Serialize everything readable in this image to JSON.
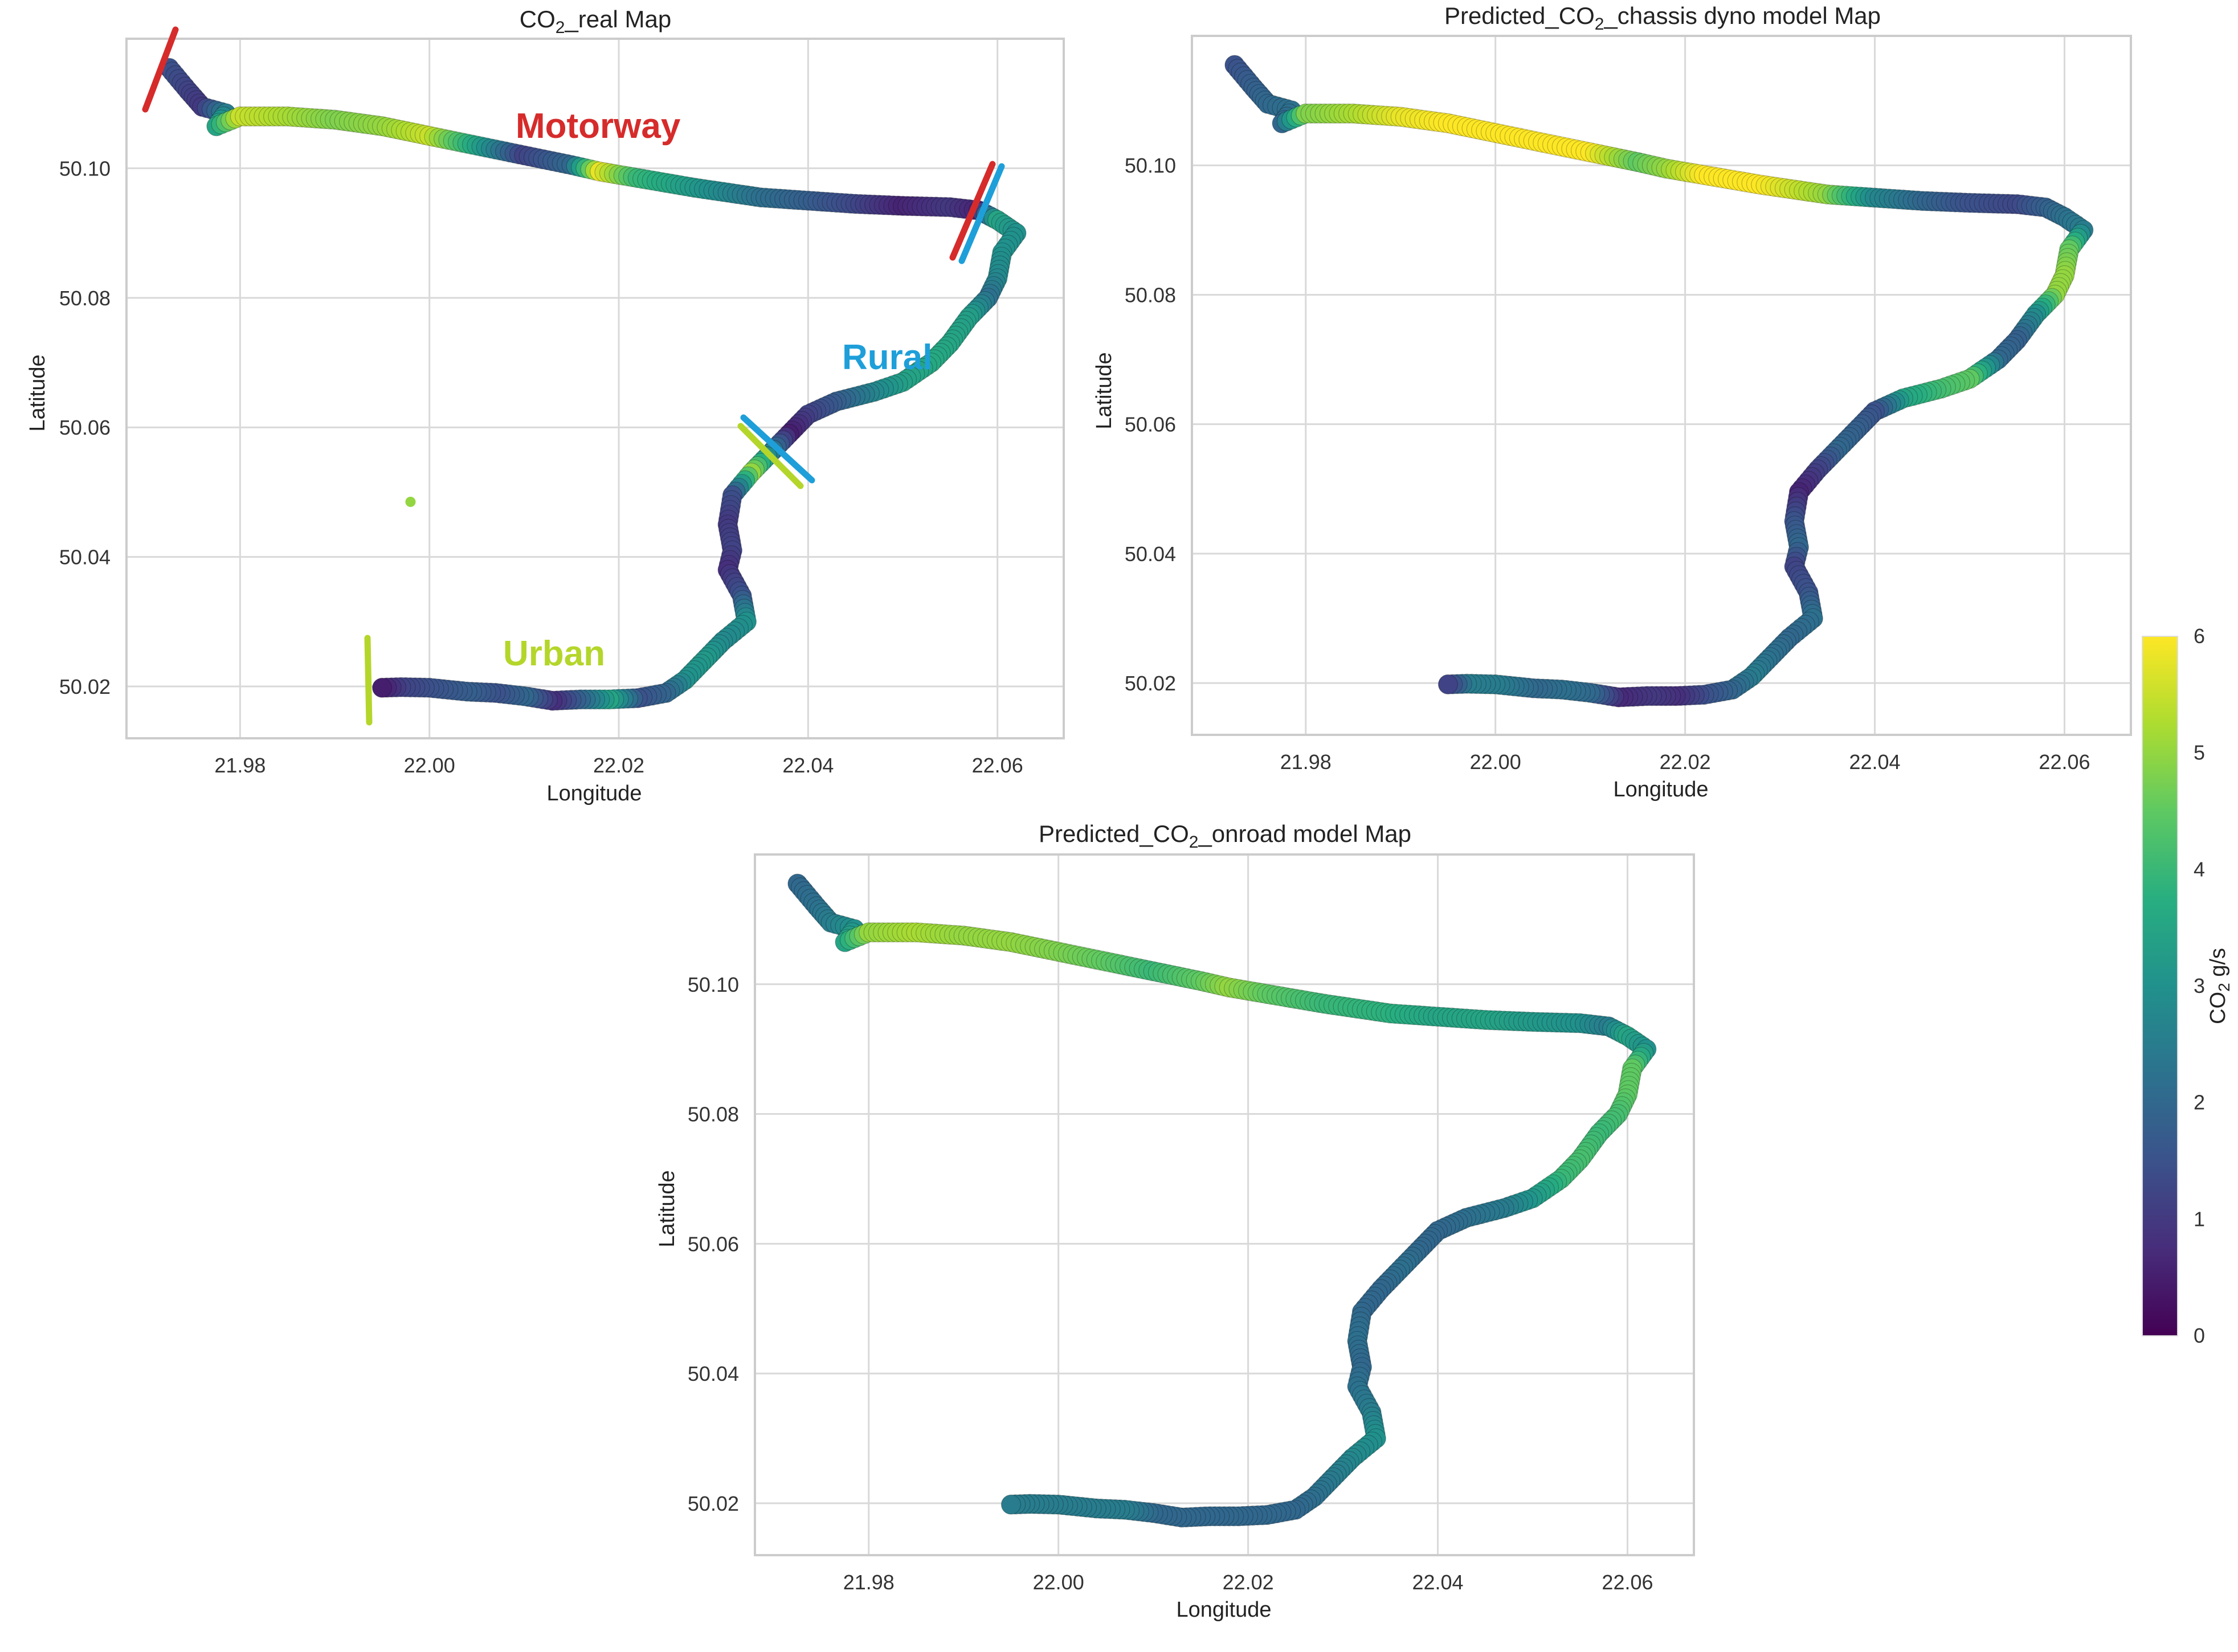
{
  "chart_data": [
    {
      "type": "scatter",
      "panel": "co2_real",
      "title_prefix": "CO",
      "title_sub": "2",
      "title_suffix": "_real Map",
      "xlabel": "Longitude",
      "ylabel": "Latitude",
      "xlim": [
        21.968,
        22.067
      ],
      "ylim": [
        50.012,
        50.12
      ],
      "xticks": [
        "21.98",
        "22.00",
        "22.02",
        "22.04",
        "22.06"
      ],
      "xtick_values": [
        21.98,
        22.0,
        22.02,
        22.04,
        22.06
      ],
      "yticks": [
        "50.02",
        "50.04",
        "50.06",
        "50.08",
        "50.10"
      ],
      "ytick_values": [
        50.02,
        50.04,
        50.06,
        50.08,
        50.1
      ],
      "points": [
        [
          21.9725,
          50.1155,
          1.5
        ],
        [
          21.9745,
          50.112,
          1.2
        ],
        [
          21.976,
          50.1095,
          1.0
        ],
        [
          21.9785,
          50.1085,
          2.5
        ],
        [
          21.9775,
          50.1065,
          3.5
        ],
        [
          21.98,
          50.108,
          5.5
        ],
        [
          21.985,
          50.108,
          5.2
        ],
        [
          21.99,
          50.1075,
          4.8
        ],
        [
          21.995,
          50.1065,
          5.0
        ],
        [
          22.0,
          50.105,
          5.5
        ],
        [
          22.005,
          50.1035,
          3.5
        ],
        [
          22.01,
          50.102,
          1.2
        ],
        [
          22.015,
          50.1005,
          2.0
        ],
        [
          22.018,
          50.0995,
          5.8
        ],
        [
          22.022,
          50.0985,
          4.0
        ],
        [
          22.028,
          50.097,
          3.2
        ],
        [
          22.035,
          50.0955,
          2.2
        ],
        [
          22.04,
          50.095,
          1.8
        ],
        [
          22.045,
          50.0945,
          1.3
        ],
        [
          22.05,
          50.0942,
          0.6
        ],
        [
          22.055,
          50.094,
          1.0
        ],
        [
          22.058,
          50.0935,
          0.6
        ],
        [
          22.06,
          50.092,
          3.5
        ],
        [
          22.062,
          50.09,
          3.0
        ],
        [
          22.0605,
          50.087,
          3.0
        ],
        [
          22.06,
          50.083,
          2.8
        ],
        [
          22.059,
          50.08,
          2.2
        ],
        [
          22.057,
          50.077,
          3.3
        ],
        [
          22.055,
          50.073,
          3.5
        ],
        [
          22.053,
          50.07,
          3.6
        ],
        [
          22.05,
          50.067,
          3.4
        ],
        [
          22.047,
          50.0655,
          2.8
        ],
        [
          22.043,
          50.064,
          1.8
        ],
        [
          22.04,
          50.062,
          1.2
        ],
        [
          22.038,
          50.059,
          0.5
        ],
        [
          22.036,
          50.056,
          2.5
        ],
        [
          22.034,
          50.053,
          5.0
        ],
        [
          22.032,
          50.0495,
          1.5
        ],
        [
          22.0315,
          50.045,
          1.0
        ],
        [
          22.032,
          50.041,
          1.2
        ],
        [
          22.0315,
          50.038,
          0.8
        ],
        [
          22.033,
          50.034,
          1.5
        ],
        [
          22.0335,
          50.03,
          3.0
        ],
        [
          22.031,
          50.027,
          2.8
        ],
        [
          22.029,
          50.024,
          3.2
        ],
        [
          22.027,
          50.021,
          3.0
        ],
        [
          22.025,
          50.019,
          2.0
        ],
        [
          22.022,
          50.0182,
          1.5
        ],
        [
          22.019,
          50.018,
          3.5
        ],
        [
          22.016,
          50.018,
          2.0
        ],
        [
          22.013,
          50.0178,
          0.8
        ],
        [
          22.01,
          50.0185,
          2.0
        ],
        [
          22.007,
          50.019,
          1.5
        ],
        [
          22.004,
          50.0192,
          1.8
        ],
        [
          22.0,
          50.0198,
          1.5
        ],
        [
          21.997,
          50.0199,
          1.2
        ],
        [
          21.995,
          50.0198,
          0.5
        ],
        [
          21.998,
          50.0485,
          5.0
        ]
      ],
      "annotations": [
        {
          "label": "Motorway",
          "color": "#d62b2b"
        },
        {
          "label": "Rural",
          "color": "#1e9fd9"
        },
        {
          "label": "Urban",
          "color": "#b4d62b"
        }
      ]
    },
    {
      "type": "scatter",
      "panel": "chassis_dyno",
      "title_prefix": "Predicted_CO",
      "title_sub": "2",
      "title_suffix": "_chassis dyno model Map",
      "xlabel": "Longitude",
      "ylabel": "Latitude",
      "xlim": [
        21.968,
        22.067
      ],
      "ylim": [
        50.012,
        50.12
      ],
      "xticks": [
        "21.98",
        "22.00",
        "22.02",
        "22.04",
        "22.06"
      ],
      "xtick_values": [
        21.98,
        22.0,
        22.02,
        22.04,
        22.06
      ],
      "yticks": [
        "50.02",
        "50.04",
        "50.06",
        "50.08",
        "50.10"
      ],
      "ytick_values": [
        50.02,
        50.04,
        50.06,
        50.08,
        50.1
      ],
      "points": [
        [
          21.9725,
          50.1155,
          1.5
        ],
        [
          21.9745,
          50.112,
          1.8
        ],
        [
          21.976,
          50.1095,
          2.0
        ],
        [
          21.9785,
          50.1085,
          2.2
        ],
        [
          21.9775,
          50.1065,
          2.0
        ],
        [
          21.98,
          50.108,
          4.8
        ],
        [
          21.985,
          50.108,
          5.2
        ],
        [
          21.99,
          50.1075,
          5.8
        ],
        [
          21.995,
          50.1065,
          6.0
        ],
        [
          22.0,
          50.105,
          6.0
        ],
        [
          22.005,
          50.1035,
          6.0
        ],
        [
          22.01,
          50.102,
          6.0
        ],
        [
          22.015,
          50.1005,
          4.5
        ],
        [
          22.018,
          50.0995,
          5.0
        ],
        [
          22.022,
          50.0985,
          6.0
        ],
        [
          22.028,
          50.097,
          6.0
        ],
        [
          22.035,
          50.0955,
          5.0
        ],
        [
          22.04,
          50.095,
          2.8
        ],
        [
          22.045,
          50.0945,
          2.0
        ],
        [
          22.05,
          50.0942,
          1.5
        ],
        [
          22.055,
          50.094,
          1.3
        ],
        [
          22.058,
          50.0935,
          1.8
        ],
        [
          22.06,
          50.092,
          2.2
        ],
        [
          22.062,
          50.09,
          2.5
        ],
        [
          22.0605,
          50.087,
          4.5
        ],
        [
          22.06,
          50.083,
          5.0
        ],
        [
          22.059,
          50.08,
          5.0
        ],
        [
          22.057,
          50.077,
          3.0
        ],
        [
          22.055,
          50.073,
          1.8
        ],
        [
          22.053,
          50.07,
          2.0
        ],
        [
          22.05,
          50.067,
          4.5
        ],
        [
          22.047,
          50.0655,
          4.2
        ],
        [
          22.043,
          50.064,
          3.5
        ],
        [
          22.04,
          50.062,
          1.5
        ],
        [
          22.038,
          50.059,
          1.8
        ],
        [
          22.036,
          50.056,
          2.0
        ],
        [
          22.034,
          50.053,
          1.2
        ],
        [
          22.032,
          50.0495,
          0.6
        ],
        [
          22.0315,
          50.045,
          1.5
        ],
        [
          22.032,
          50.041,
          2.0
        ],
        [
          22.0315,
          50.038,
          1.2
        ],
        [
          22.033,
          50.034,
          1.5
        ],
        [
          22.0335,
          50.03,
          2.2
        ],
        [
          22.031,
          50.027,
          2.0
        ],
        [
          22.029,
          50.024,
          2.2
        ],
        [
          22.027,
          50.021,
          2.5
        ],
        [
          22.025,
          50.019,
          2.0
        ],
        [
          22.022,
          50.0182,
          1.5
        ],
        [
          22.019,
          50.018,
          0.8
        ],
        [
          22.016,
          50.018,
          1.0
        ],
        [
          22.013,
          50.0178,
          0.7
        ],
        [
          22.01,
          50.0185,
          2.0
        ],
        [
          22.007,
          50.019,
          2.2
        ],
        [
          22.004,
          50.0192,
          2.0
        ],
        [
          22.0,
          50.0198,
          2.5
        ],
        [
          21.997,
          50.0199,
          2.5
        ],
        [
          21.995,
          50.0198,
          1.2
        ]
      ]
    },
    {
      "type": "scatter",
      "panel": "onroad",
      "title_prefix": "Predicted_CO",
      "title_sub": "2",
      "title_suffix": "_onroad model Map",
      "xlabel": "Longitude",
      "ylabel": "Latitude",
      "xlim": [
        21.968,
        22.067
      ],
      "ylim": [
        50.012,
        50.12
      ],
      "xticks": [
        "21.98",
        "22.00",
        "22.02",
        "22.04",
        "22.06"
      ],
      "xtick_values": [
        21.98,
        22.0,
        22.02,
        22.04,
        22.06
      ],
      "yticks": [
        "50.02",
        "50.04",
        "50.06",
        "50.08",
        "50.10"
      ],
      "ytick_values": [
        50.02,
        50.04,
        50.06,
        50.08,
        50.1
      ],
      "points": [
        [
          21.9725,
          50.1155,
          2.0
        ],
        [
          21.9745,
          50.112,
          2.2
        ],
        [
          21.976,
          50.1095,
          2.5
        ],
        [
          21.9785,
          50.1085,
          3.0
        ],
        [
          21.9775,
          50.1065,
          3.5
        ],
        [
          21.98,
          50.108,
          5.0
        ],
        [
          21.985,
          50.108,
          5.2
        ],
        [
          21.99,
          50.1075,
          5.0
        ],
        [
          21.995,
          50.1065,
          5.0
        ],
        [
          22.0,
          50.105,
          4.8
        ],
        [
          22.005,
          50.1035,
          4.5
        ],
        [
          22.01,
          50.102,
          4.0
        ],
        [
          22.015,
          50.1005,
          4.5
        ],
        [
          22.018,
          50.0995,
          5.0
        ],
        [
          22.022,
          50.0985,
          4.5
        ],
        [
          22.028,
          50.097,
          4.0
        ],
        [
          22.035,
          50.0955,
          3.8
        ],
        [
          22.04,
          50.095,
          3.5
        ],
        [
          22.045,
          50.0945,
          3.5
        ],
        [
          22.05,
          50.0942,
          3.2
        ],
        [
          22.055,
          50.094,
          3.0
        ],
        [
          22.058,
          50.0935,
          2.5
        ],
        [
          22.06,
          50.092,
          3.5
        ],
        [
          22.062,
          50.09,
          3.0
        ],
        [
          22.0605,
          50.087,
          4.5
        ],
        [
          22.06,
          50.083,
          4.5
        ],
        [
          22.059,
          50.08,
          4.2
        ],
        [
          22.057,
          50.077,
          4.0
        ],
        [
          22.055,
          50.073,
          4.2
        ],
        [
          22.053,
          50.07,
          4.0
        ],
        [
          22.05,
          50.067,
          3.2
        ],
        [
          22.047,
          50.0655,
          2.5
        ],
        [
          22.043,
          50.064,
          2.2
        ],
        [
          22.04,
          50.062,
          2.0
        ],
        [
          22.038,
          50.059,
          2.0
        ],
        [
          22.036,
          50.056,
          2.2
        ],
        [
          22.034,
          50.053,
          2.0
        ],
        [
          22.032,
          50.0495,
          2.0
        ],
        [
          22.0315,
          50.045,
          2.2
        ],
        [
          22.032,
          50.041,
          2.0
        ],
        [
          22.0315,
          50.038,
          2.2
        ],
        [
          22.033,
          50.034,
          2.5
        ],
        [
          22.0335,
          50.03,
          3.0
        ],
        [
          22.031,
          50.027,
          2.8
        ],
        [
          22.029,
          50.024,
          2.5
        ],
        [
          22.027,
          50.021,
          2.2
        ],
        [
          22.025,
          50.019,
          2.0
        ],
        [
          22.022,
          50.0182,
          2.0
        ],
        [
          22.019,
          50.018,
          2.0
        ],
        [
          22.016,
          50.018,
          2.0
        ],
        [
          22.013,
          50.0178,
          2.0
        ],
        [
          22.01,
          50.0185,
          2.0
        ],
        [
          22.007,
          50.019,
          2.5
        ],
        [
          22.004,
          50.0192,
          2.5
        ],
        [
          22.0,
          50.0198,
          2.5
        ],
        [
          21.997,
          50.0199,
          2.5
        ],
        [
          21.995,
          50.0198,
          2.5
        ]
      ]
    }
  ],
  "colorbar": {
    "label_prefix": "CO",
    "label_sub": "2",
    "label_suffix": " g/s",
    "min": 0,
    "max": 6,
    "ticks": [
      "0",
      "1",
      "2",
      "3",
      "4",
      "5",
      "6"
    ],
    "colormap": [
      "#440154",
      "#472d7b",
      "#3b528b",
      "#2c728e",
      "#21918c",
      "#28ae80",
      "#5ec962",
      "#addc30",
      "#fde725"
    ]
  }
}
